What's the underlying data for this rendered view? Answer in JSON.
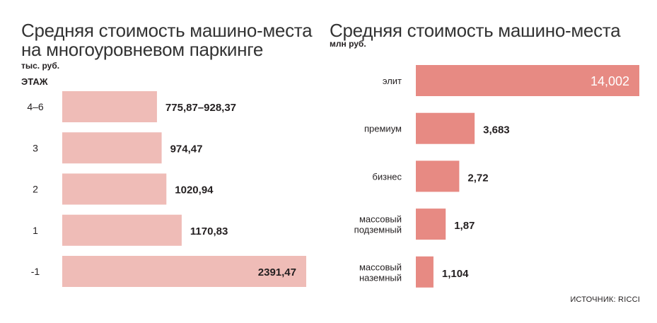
{
  "colors": {
    "left_bar": "#efbcb7",
    "right_bar": "#e78a83",
    "text": "#231f20",
    "inside_label": "#ffffff"
  },
  "left_chart": {
    "title_line1": "Средняя стоимость машино-места",
    "title_line2": "на многоуровневом паркинге",
    "unit": "тыс. руб.",
    "axis_header": "ЭТАЖ",
    "chart_data": {
      "type": "bar",
      "orientation": "horizontal",
      "categories": [
        "4–6",
        "3",
        "2",
        "1",
        "-1"
      ],
      "values": [
        928.37,
        974.47,
        1020.94,
        1170.83,
        2391.47
      ],
      "labels": [
        "775,87–928,37",
        "974,47",
        "1020,94",
        "1170,83",
        "2391,47"
      ],
      "xlim": [
        0,
        2391.47
      ]
    }
  },
  "right_chart": {
    "title": "Средняя стоимость машино-места",
    "unit": "млн руб.",
    "chart_data": {
      "type": "bar",
      "orientation": "horizontal",
      "categories": [
        [
          "элит"
        ],
        [
          "премиум"
        ],
        [
          "бизнес"
        ],
        [
          "массовый",
          "подземный"
        ],
        [
          "массовый",
          "наземный"
        ]
      ],
      "values": [
        14.002,
        3.683,
        2.72,
        1.87,
        1.104
      ],
      "labels": [
        "14,002",
        "3,683",
        "2,72",
        "1,87",
        "1,104"
      ],
      "xlim": [
        0,
        14.002
      ]
    }
  },
  "source": "ИСТОЧНИК: RICCI"
}
